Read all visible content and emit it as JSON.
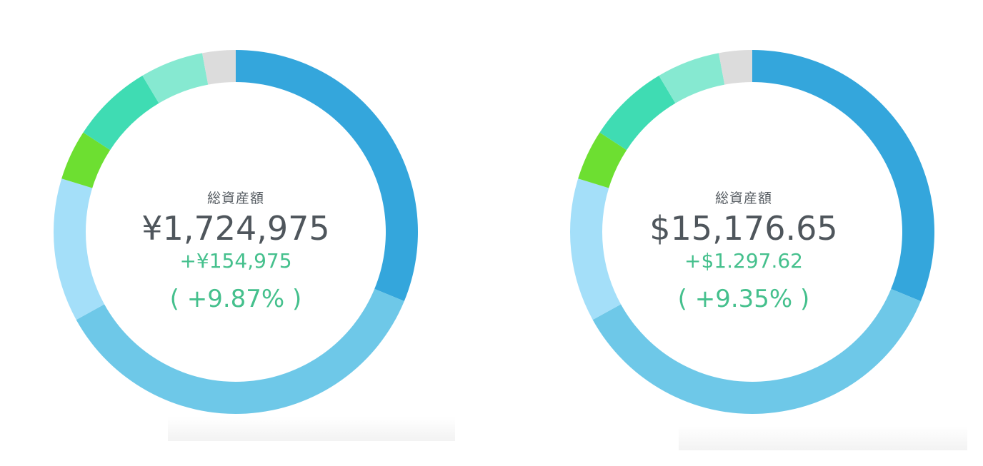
{
  "chart_data": [
    {
      "type": "pie",
      "variant": "donut",
      "label": "総資産額",
      "total": "¥1,724,975",
      "change": "+¥154,975",
      "change_pct": "( +9.87% )",
      "segment_colors": [
        "#34a6dc",
        "#6ec8e8",
        "#a4dff9",
        "#6ddf31",
        "#3fdcb3",
        "#86e9d1",
        "#dcdcdc"
      ],
      "values": [
        32.8,
        37.6,
        13.4,
        4.7,
        7.6,
        5.9,
        3.1
      ]
    },
    {
      "type": "pie",
      "variant": "donut",
      "label": "総資産額",
      "total": "$15,176.65",
      "change": "+$1.297.62",
      "change_pct": "( +9.35% )",
      "segment_colors": [
        "#34a6dc",
        "#6ec8e8",
        "#a4dff9",
        "#6ddf31",
        "#3fdcb3",
        "#86e9d1",
        "#dcdcdc"
      ],
      "values": [
        32.8,
        37.6,
        13.4,
        4.7,
        7.6,
        5.9,
        3.1
      ]
    }
  ]
}
